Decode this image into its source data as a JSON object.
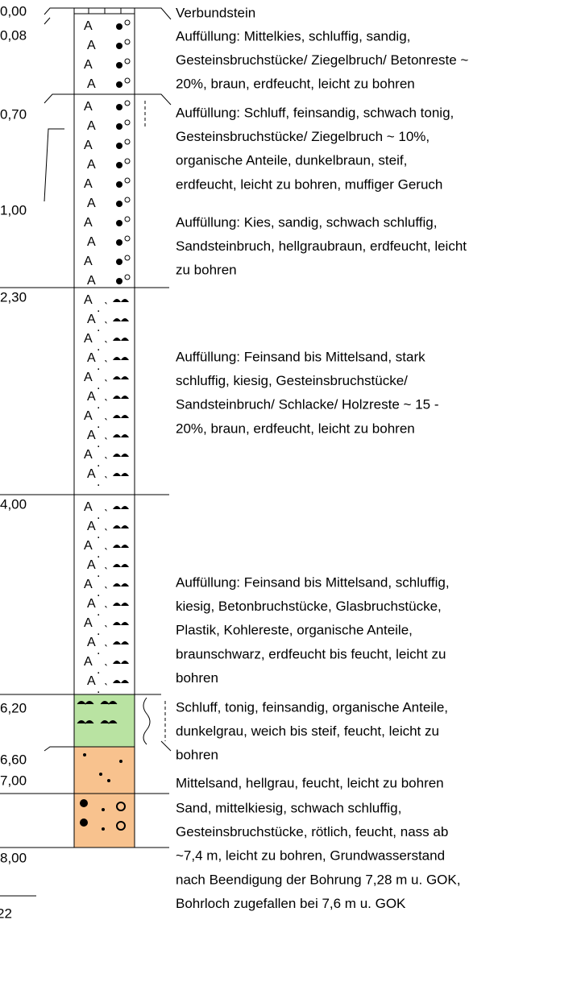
{
  "depth_labels": [
    "0,00",
    "0,08",
    "0,70",
    "1,00",
    "2,30",
    "4,00",
    "6,20",
    "6,60",
    "7,00",
    "8,00"
  ],
  "cut_label": "22",
  "descriptions": [
    [
      "Verbundstein"
    ],
    [
      "Auffüllung: Mittelkies, schluffig, sandig,",
      "Gesteinsbruchstücke/ Ziegelbruch/ Betonreste ~",
      "20%, braun, erdfeucht, leicht zu bohren"
    ],
    [
      "Auffüllung: Schluff, feinsandig, schwach tonig,",
      "Gesteinsbruchstücke/ Ziegelbruch ~ 10%,",
      "organische Anteile, dunkelbraun, steif,",
      "erdfeucht, leicht zu bohren, muffiger Geruch"
    ],
    [
      "Auffüllung: Kies, sandig, schwach schluffig,",
      "Sandsteinbruch, hellgraubraun, erdfeucht, leicht",
      "zu bohren"
    ],
    [
      "Auffüllung: Feinsand bis Mittelsand, stark",
      "schluffig, kiesig, Gesteinsbruchstücke/",
      "Sandsteinbruch/ Schlacke/ Holzreste ~ 15 -",
      "20%, braun, erdfeucht, leicht zu bohren"
    ],
    [
      "Auffüllung: Feinsand bis Mittelsand, schluffig,",
      "kiesig, Betonbruchstücke, Glasbruchstücke,",
      "Plastik, Kohlereste, organische Anteile,",
      "braunschwarz, erdfeucht bis feucht, leicht zu",
      "bohren"
    ],
    [
      "Schluff, tonig, feinsandig, organische Anteile,",
      "dunkelgrau, weich bis steif, feucht, leicht zu",
      "bohren"
    ],
    [
      "Mittelsand, hellgrau, feucht, leicht zu bohren"
    ],
    [
      "Sand, mittelkiesig, schwach schluffig,",
      "Gesteinsbruchstücke, rötlich, feucht, nass ab",
      "~7,4 m, leicht zu bohren, Grundwasserstand",
      "nach Beendigung der Bohrung 7,28 m u. GOK,",
      "Bohrloch zugefallen bei 7,6 m u. GOK"
    ]
  ]
}
